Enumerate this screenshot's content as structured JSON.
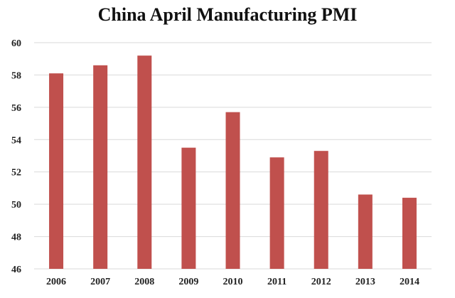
{
  "chart_data": {
    "type": "bar",
    "title": "China April Manufacturing PMI",
    "xlabel": "",
    "ylabel": "",
    "categories": [
      "2006",
      "2007",
      "2008",
      "2009",
      "2010",
      "2011",
      "2012",
      "2013",
      "2014"
    ],
    "values": [
      58.1,
      58.6,
      59.2,
      53.5,
      55.7,
      52.9,
      53.3,
      50.6,
      50.4
    ],
    "ylim": [
      46,
      60
    ],
    "yticks": [
      "46",
      "48",
      "50",
      "52",
      "54",
      "56",
      "58",
      "60"
    ],
    "grid": true,
    "legend": "none",
    "bar_color": "#C0504D",
    "grid_color": "#D9D9D9"
  }
}
